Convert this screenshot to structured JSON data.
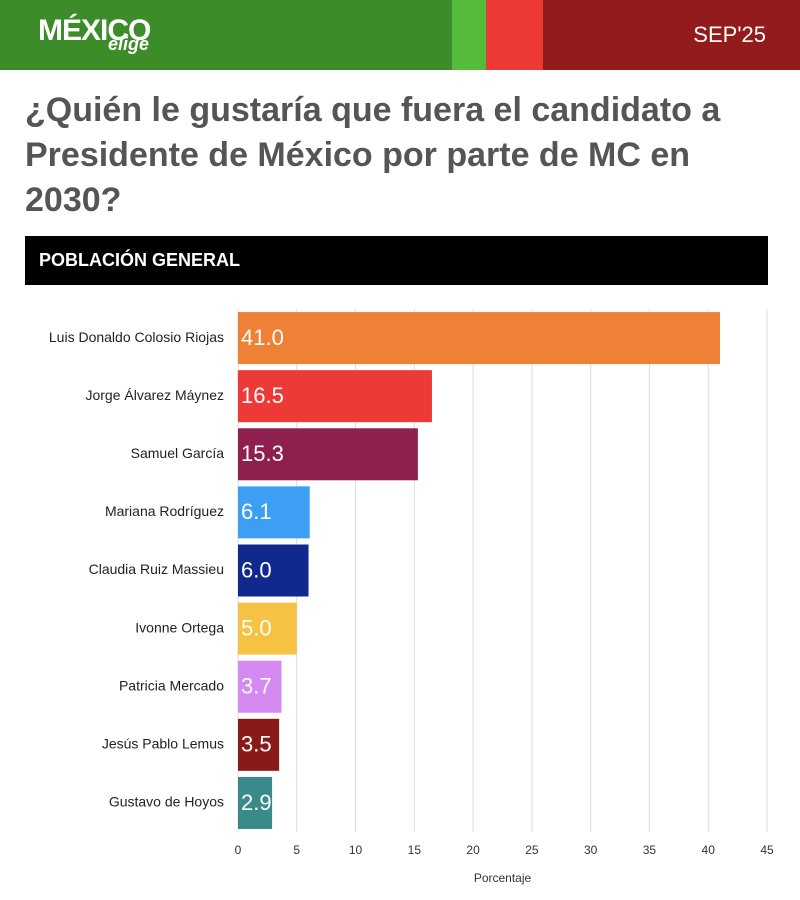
{
  "header": {
    "logo": "MÉXICO",
    "logo_sub": "elige",
    "date": "SEP'25"
  },
  "chart_data": {
    "type": "bar",
    "orientation": "horizontal",
    "title": "¿Quién le gustaría que fuera el candidato a Presidente de México por parte de MC en 2030?",
    "subtitle": "POBLACIÓN GENERAL",
    "x_label": "Porcentaje",
    "categories": [
      "Luis Donaldo Colosio Riojas",
      "Jorge Álvarez Máynez",
      "Samuel García",
      "Mariana Rodríguez",
      "Claudia Ruiz Massieu",
      "Ivonne Ortega",
      "Patricia Mercado",
      "Jesús Pablo Lemus",
      "Gustavo de Hoyos"
    ],
    "values": [
      41,
      16.5,
      15.3,
      6.1,
      6,
      5,
      3.7,
      3.5,
      2.9
    ],
    "value_labels": [
      "41.0",
      "16.5",
      "15.3",
      "6.1",
      "6.0",
      "5.0",
      "3.7",
      "3.5",
      "2.9"
    ],
    "colors": [
      "#ef8136",
      "#ee3a36",
      "#8e1f4f",
      "#3d9ef5",
      "#10298f",
      "#f5c243",
      "#d48af0",
      "#8a1a1a",
      "#3a8a8c"
    ],
    "xlim": [
      0,
      45
    ],
    "xticks": [
      0,
      5,
      10,
      15,
      20,
      25,
      30,
      35,
      40,
      45
    ],
    "grid": true
  }
}
